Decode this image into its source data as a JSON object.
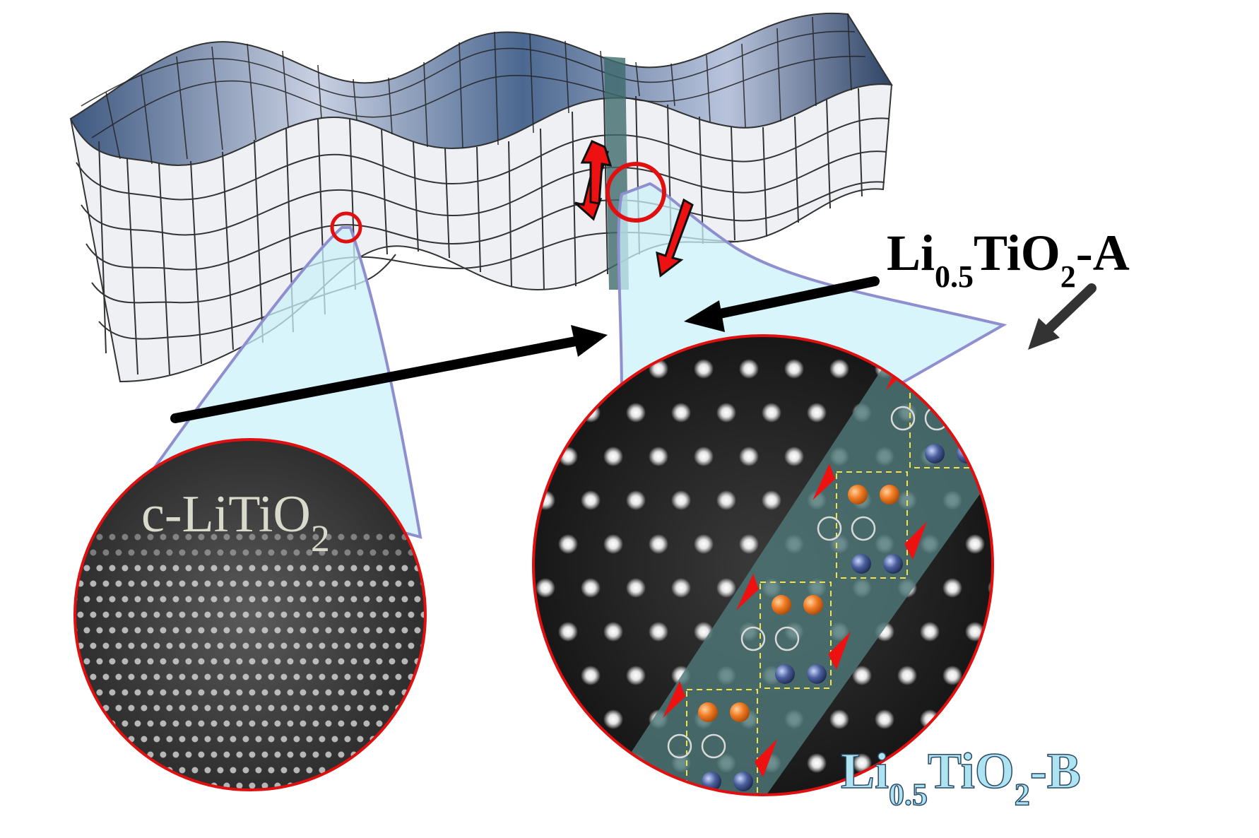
{
  "labels": {
    "left_main": "c-LiTiO",
    "left_sub": "2",
    "top_right_main": "Li",
    "top_right_sub1": "0.5",
    "top_right_mid": "TiO",
    "top_right_sub2": "2",
    "top_right_tail": "-A",
    "bottom_right_main": "Li",
    "bottom_right_sub1": "0.5",
    "bottom_right_mid": "TiO",
    "bottom_right_sub2": "2",
    "bottom_right_tail": "-B"
  },
  "colors": {
    "surface_face": "#eef0f4",
    "surface_top": "#5b7296",
    "surface_grid": "#333333",
    "cone_fill": "#c9f1f8",
    "cone_edge": "#8f8fd0",
    "highlight_ring": "#e01010",
    "arrow_black": "#000000",
    "arrow_red": "#ee1111",
    "band_fill": "#4f7778",
    "atom_orange": "#f07a22",
    "atom_blue": "#4a5f9c",
    "unit_cell_border": "#f2e24a",
    "label_light": "#d9d9cc",
    "label_cyan": "#aee4f2"
  },
  "icons": [
    "energy-landscape-surface",
    "red-ring-icon",
    "black-arrow-icon",
    "red-arrow-icon",
    "orange-atom-icon",
    "blue-atom-icon"
  ]
}
